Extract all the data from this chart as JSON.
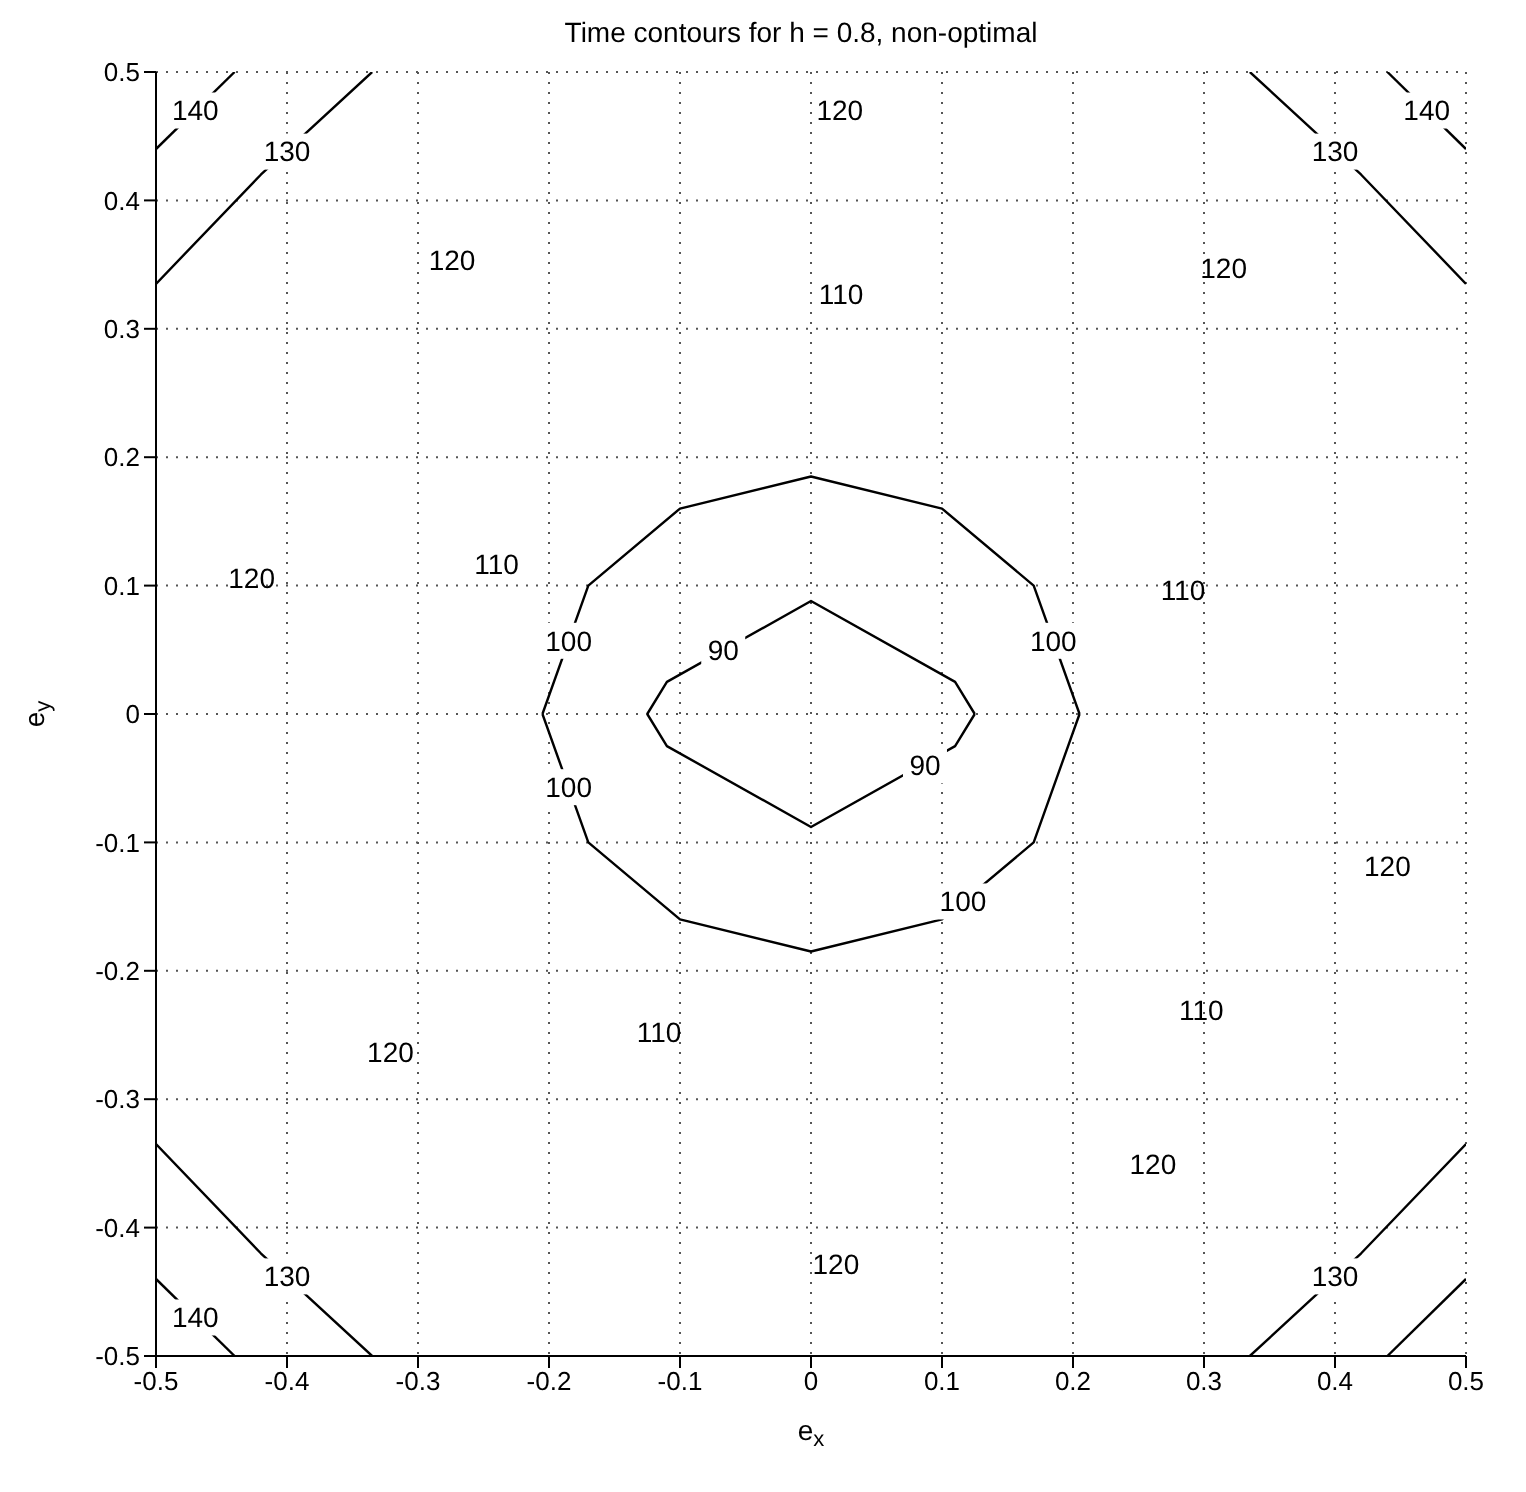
{
  "chart_data": {
    "type": "line",
    "title": "Time contours for h = 0.8, non-optimal",
    "xlabel": "e$_{x}$",
    "ylabel": "e$_{y}$",
    "xlim": [
      -0.5,
      0.5
    ],
    "ylim": [
      -0.5,
      0.5
    ],
    "xticks": [
      -0.5,
      -0.4,
      -0.3,
      -0.2,
      -0.1,
      0,
      0.1,
      0.2,
      0.3,
      0.4,
      0.5
    ],
    "yticks": [
      -0.5,
      -0.4,
      -0.3,
      -0.2,
      -0.1,
      0,
      0.1,
      0.2,
      0.3,
      0.4,
      0.5
    ],
    "grid": true,
    "marker": "none",
    "line_style": "solid",
    "series": [
      {
        "color": "#000000",
        "x": [
          -0.125,
          -0.11,
          0,
          0.11,
          0.125
        ],
        "values": [
          0,
          0.025,
          0.088,
          0.025,
          0
        ]
      },
      {
        "color": "#000000",
        "x": [
          -0.125,
          -0.11,
          0,
          0.11,
          0.125
        ],
        "values": [
          0,
          -0.025,
          -0.088,
          -0.025,
          0
        ]
      },
      {
        "color": "#000000",
        "x": [
          -0.205,
          -0.17,
          -0.1,
          0,
          0.1,
          0.17,
          0.205
        ],
        "values": [
          0,
          0.1,
          0.16,
          0.185,
          0.16,
          0.1,
          0
        ]
      },
      {
        "color": "#000000",
        "x": [
          -0.205,
          -0.17,
          -0.1,
          0,
          0.1,
          0.17,
          0.205
        ],
        "values": [
          0,
          -0.1,
          -0.16,
          -0.185,
          -0.16,
          -0.1,
          0
        ]
      },
      {
        "color": "#000000",
        "x": [
          -0.5,
          -0.42,
          -0.335
        ],
        "values": [
          0.335,
          0.42,
          0.5
        ]
      },
      {
        "color": "#000000",
        "x": [
          0.335,
          0.42,
          0.5
        ],
        "values": [
          0.5,
          0.42,
          0.335
        ]
      },
      {
        "color": "#000000",
        "x": [
          -0.5,
          -0.42,
          -0.335
        ],
        "values": [
          -0.335,
          -0.42,
          -0.5
        ]
      },
      {
        "color": "#000000",
        "x": [
          0.335,
          0.42,
          0.5
        ],
        "values": [
          -0.5,
          -0.42,
          -0.335
        ]
      },
      {
        "color": "#000000",
        "x": [
          -0.5,
          -0.44
        ],
        "values": [
          0.44,
          0.5
        ]
      },
      {
        "color": "#000000",
        "x": [
          0.44,
          0.5
        ],
        "values": [
          0.5,
          0.44
        ]
      },
      {
        "color": "#000000",
        "x": [
          -0.5,
          -0.44
        ],
        "values": [
          -0.44,
          -0.5
        ]
      },
      {
        "color": "#000000",
        "x": [
          0.44,
          0.5
        ],
        "values": [
          -0.5,
          -0.44
        ]
      }
    ],
    "annotations": [
      {
        "text": "140",
        "x": -0.47,
        "y": 0.47
      },
      {
        "text": "130",
        "x": -0.4,
        "y": 0.438
      },
      "120",
      "120",
      "110",
      "120",
      {
        "text": "130",
        "x": 0.4,
        "y": 0.438
      },
      {
        "text": "140",
        "x": 0.47,
        "y": 0.47
      },
      "120",
      "110",
      {
        "text": "100",
        "x": -0.185,
        "y": 0.057
      },
      {
        "text": "90",
        "x": -0.067,
        "y": 0.05
      },
      {
        "text": "100",
        "x": 0.185,
        "y": 0.057
      },
      "110",
      "120",
      {
        "text": "100",
        "x": -0.185,
        "y": -0.057
      },
      {
        "text": "90",
        "x": 0.087,
        "y": -0.04
      },
      {
        "text": "100",
        "x": 0.116,
        "y": -0.146
      },
      "110",
      "110",
      "120",
      "120",
      "120",
      {
        "text": "130",
        "x": -0.4,
        "y": -0.438
      },
      {
        "text": "130",
        "x": 0.4,
        "y": -0.438
      },
      {
        "text": "140",
        "x": -0.47,
        "y": -0.47
      }
    ]
  }
}
